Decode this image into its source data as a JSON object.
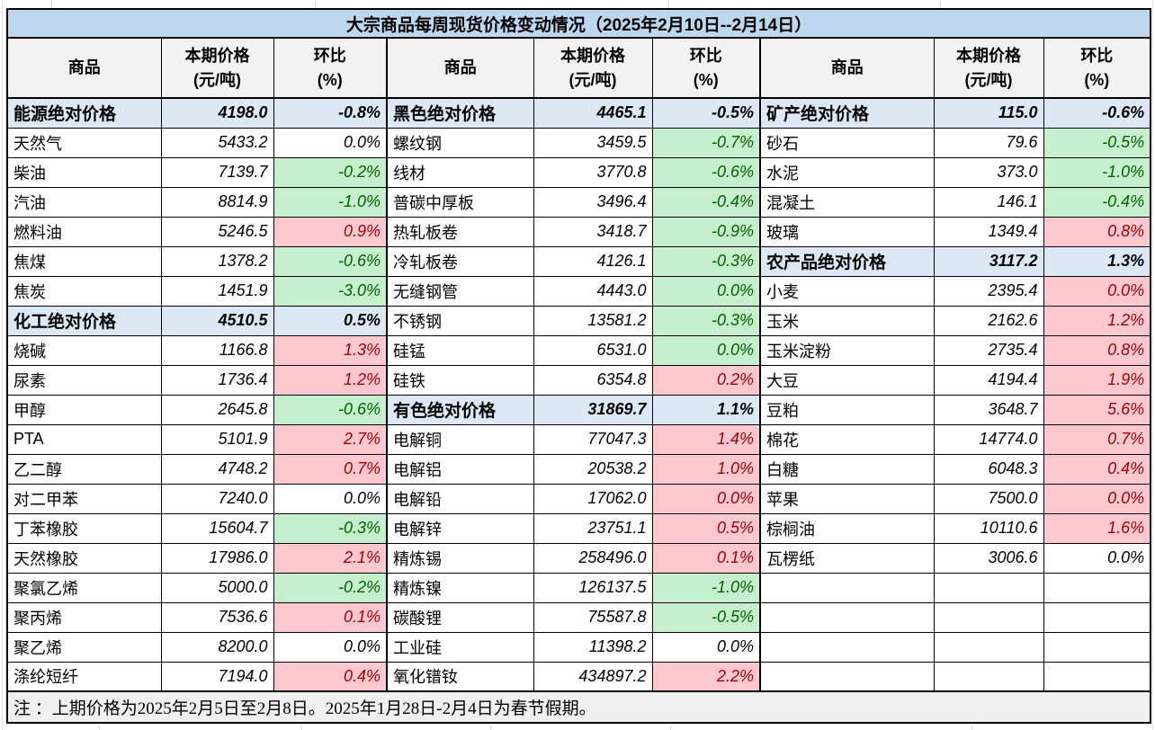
{
  "title": "大宗商品每周现货价格变动情况（2025年2月10日--2月14日）",
  "column_headers": {
    "commodity": "商品",
    "price": "本期价格",
    "price_unit": "(元/吨)",
    "pct": "环比",
    "pct_unit": "(%)"
  },
  "note": "注 ：上期价格为2025年2月5日至2月8日。2025年1月28日-2月4日为春节假期。",
  "colors": {
    "title_bg": "#BDD7EE",
    "category_bg": "#DCE8F5",
    "header_bg": "#F2F2F2",
    "name_bg": "#F2F2F2",
    "up_bg": "#FFC7CE",
    "up_text": "#9C0006",
    "down_bg": "#C6EFCE",
    "down_text": "#006100",
    "note_bg": "#F0F0F0"
  },
  "groups": [
    {
      "name": "energy_chemical",
      "rows": [
        {
          "name": "能源绝对价格",
          "price": "4198.0",
          "pct": "-0.8%",
          "type": "category",
          "pct_style": "cat"
        },
        {
          "name": "天然气",
          "price": "5433.2",
          "pct": "0.0%",
          "type": "item",
          "pct_style": "flat"
        },
        {
          "name": "柴油",
          "price": "7139.7",
          "pct": "-0.2%",
          "type": "item",
          "pct_style": "down"
        },
        {
          "name": "汽油",
          "price": "8814.9",
          "pct": "-1.0%",
          "type": "item",
          "pct_style": "down"
        },
        {
          "name": "燃料油",
          "price": "5246.5",
          "pct": "0.9%",
          "type": "item",
          "pct_style": "up"
        },
        {
          "name": "焦煤",
          "price": "1378.2",
          "pct": "-0.6%",
          "type": "item",
          "pct_style": "down"
        },
        {
          "name": "焦炭",
          "price": "1451.9",
          "pct": "-3.0%",
          "type": "item",
          "pct_style": "down"
        },
        {
          "name": "化工绝对价格",
          "price": "4510.5",
          "pct": "0.5%",
          "type": "category",
          "pct_style": "cat"
        },
        {
          "name": "烧碱",
          "price": "1166.8",
          "pct": "1.3%",
          "type": "item",
          "pct_style": "up"
        },
        {
          "name": "尿素",
          "price": "1736.4",
          "pct": "1.2%",
          "type": "item",
          "pct_style": "up"
        },
        {
          "name": "甲醇",
          "price": "2645.8",
          "pct": "-0.6%",
          "type": "item",
          "pct_style": "down"
        },
        {
          "name": "PTA",
          "price": "5101.9",
          "pct": "2.7%",
          "type": "item",
          "pct_style": "up"
        },
        {
          "name": "乙二醇",
          "price": "4748.2",
          "pct": "0.7%",
          "type": "item",
          "pct_style": "up"
        },
        {
          "name": "对二甲苯",
          "price": "7240.0",
          "pct": "0.0%",
          "type": "item",
          "pct_style": "flat"
        },
        {
          "name": "丁苯橡胶",
          "price": "15604.7",
          "pct": "-0.3%",
          "type": "item",
          "pct_style": "down"
        },
        {
          "name": "天然橡胶",
          "price": "17986.0",
          "pct": "2.1%",
          "type": "item",
          "pct_style": "up"
        },
        {
          "name": "聚氯乙烯",
          "price": "5000.0",
          "pct": "-0.2%",
          "type": "item",
          "pct_style": "down"
        },
        {
          "name": "聚丙烯",
          "price": "7536.6",
          "pct": "0.1%",
          "type": "item",
          "pct_style": "up"
        },
        {
          "name": "聚乙烯",
          "price": "8200.0",
          "pct": "0.0%",
          "type": "item",
          "pct_style": "flat"
        },
        {
          "name": "涤纶短纤",
          "price": "7194.0",
          "pct": "0.4%",
          "type": "item",
          "pct_style": "up"
        }
      ]
    },
    {
      "name": "ferrous_nonferrous",
      "rows": [
        {
          "name": "黑色绝对价格",
          "price": "4465.1",
          "pct": "-0.5%",
          "type": "category",
          "pct_style": "cat"
        },
        {
          "name": "螺纹钢",
          "price": "3459.5",
          "pct": "-0.7%",
          "type": "item",
          "pct_style": "down"
        },
        {
          "name": "线材",
          "price": "3770.8",
          "pct": "-0.6%",
          "type": "item",
          "pct_style": "down"
        },
        {
          "name": "普碳中厚板",
          "price": "3496.4",
          "pct": "-0.4%",
          "type": "item",
          "pct_style": "down"
        },
        {
          "name": "热轧板卷",
          "price": "3418.7",
          "pct": "-0.9%",
          "type": "item",
          "pct_style": "down"
        },
        {
          "name": "冷轧板卷",
          "price": "4126.1",
          "pct": "-0.3%",
          "type": "item",
          "pct_style": "down"
        },
        {
          "name": "无缝钢管",
          "price": "4443.0",
          "pct": "0.0%",
          "type": "item",
          "pct_style": "down"
        },
        {
          "name": "不锈钢",
          "price": "13581.2",
          "pct": "-0.3%",
          "type": "item",
          "pct_style": "down"
        },
        {
          "name": "硅锰",
          "price": "6531.0",
          "pct": "0.0%",
          "type": "item",
          "pct_style": "down"
        },
        {
          "name": "硅铁",
          "price": "6354.8",
          "pct": "0.2%",
          "type": "item",
          "pct_style": "up"
        },
        {
          "name": "有色绝对价格",
          "price": "31869.7",
          "pct": "1.1%",
          "type": "category",
          "pct_style": "cat"
        },
        {
          "name": "电解铜",
          "price": "77047.3",
          "pct": "1.4%",
          "type": "item",
          "pct_style": "up"
        },
        {
          "name": "电解铝",
          "price": "20538.2",
          "pct": "1.0%",
          "type": "item",
          "pct_style": "up"
        },
        {
          "name": "电解铅",
          "price": "17062.0",
          "pct": "0.0%",
          "type": "item",
          "pct_style": "up"
        },
        {
          "name": "电解锌",
          "price": "23751.1",
          "pct": "0.5%",
          "type": "item",
          "pct_style": "up"
        },
        {
          "name": "精炼锡",
          "price": "258496.0",
          "pct": "0.1%",
          "type": "item",
          "pct_style": "up"
        },
        {
          "name": "精炼镍",
          "price": "126137.5",
          "pct": "-1.0%",
          "type": "item",
          "pct_style": "down"
        },
        {
          "name": "碳酸锂",
          "price": "75587.8",
          "pct": "-0.5%",
          "type": "item",
          "pct_style": "down"
        },
        {
          "name": "工业硅",
          "price": "11398.2",
          "pct": "0.0%",
          "type": "item",
          "pct_style": "flat"
        },
        {
          "name": "氧化镨钕",
          "price": "434897.2",
          "pct": "2.2%",
          "type": "item",
          "pct_style": "up"
        }
      ]
    },
    {
      "name": "mineral_agriculture",
      "rows": [
        {
          "name": "矿产绝对价格",
          "price": "115.0",
          "pct": "-0.6%",
          "type": "category",
          "pct_style": "cat"
        },
        {
          "name": "砂石",
          "price": "79.6",
          "pct": "-0.5%",
          "type": "item",
          "pct_style": "down"
        },
        {
          "name": "水泥",
          "price": "373.0",
          "pct": "-1.0%",
          "type": "item",
          "pct_style": "down"
        },
        {
          "name": "混凝土",
          "price": "146.1",
          "pct": "-0.4%",
          "type": "item",
          "pct_style": "down"
        },
        {
          "name": "玻璃",
          "price": "1349.4",
          "pct": "0.8%",
          "type": "item",
          "pct_style": "up"
        },
        {
          "name": "农产品绝对价格",
          "price": "3117.2",
          "pct": "1.3%",
          "type": "category",
          "pct_style": "cat"
        },
        {
          "name": "小麦",
          "price": "2395.4",
          "pct": "0.0%",
          "type": "item",
          "pct_style": "up"
        },
        {
          "name": "玉米",
          "price": "2162.6",
          "pct": "1.2%",
          "type": "item",
          "pct_style": "up"
        },
        {
          "name": "玉米淀粉",
          "price": "2735.4",
          "pct": "0.8%",
          "type": "item",
          "pct_style": "up"
        },
        {
          "name": "大豆",
          "price": "4194.4",
          "pct": "1.9%",
          "type": "item",
          "pct_style": "up"
        },
        {
          "name": "豆粕",
          "price": "3648.7",
          "pct": "5.6%",
          "type": "item",
          "pct_style": "up"
        },
        {
          "name": "棉花",
          "price": "14774.0",
          "pct": "0.7%",
          "type": "item",
          "pct_style": "up"
        },
        {
          "name": "白糖",
          "price": "6048.3",
          "pct": "0.4%",
          "type": "item",
          "pct_style": "up"
        },
        {
          "name": "苹果",
          "price": "7500.0",
          "pct": "0.0%",
          "type": "item",
          "pct_style": "up"
        },
        {
          "name": "棕榈油",
          "price": "10110.6",
          "pct": "1.6%",
          "type": "item",
          "pct_style": "up"
        },
        {
          "name": "瓦楞纸",
          "price": "3006.6",
          "pct": "0.0%",
          "type": "item",
          "pct_style": "flat"
        },
        {
          "name": "",
          "price": "",
          "pct": "",
          "type": "empty",
          "pct_style": "none"
        },
        {
          "name": "",
          "price": "",
          "pct": "",
          "type": "empty",
          "pct_style": "none"
        },
        {
          "name": "",
          "price": "",
          "pct": "",
          "type": "empty",
          "pct_style": "none"
        },
        {
          "name": "",
          "price": "",
          "pct": "",
          "type": "empty",
          "pct_style": "none"
        }
      ]
    }
  ]
}
